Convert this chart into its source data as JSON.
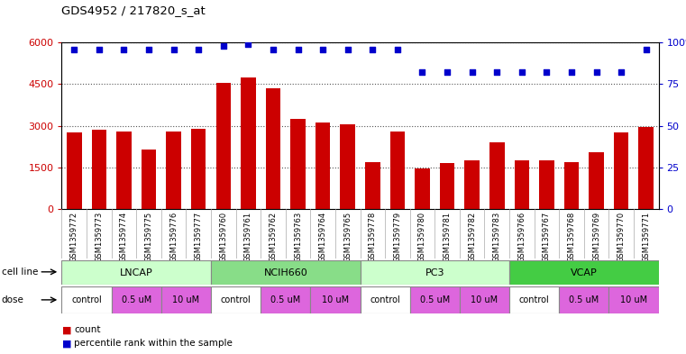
{
  "title": "GDS4952 / 217820_s_at",
  "samples": [
    "GSM1359772",
    "GSM1359773",
    "GSM1359774",
    "GSM1359775",
    "GSM1359776",
    "GSM1359777",
    "GSM1359760",
    "GSM1359761",
    "GSM1359762",
    "GSM1359763",
    "GSM1359764",
    "GSM1359765",
    "GSM1359778",
    "GSM1359779",
    "GSM1359780",
    "GSM1359781",
    "GSM1359782",
    "GSM1359783",
    "GSM1359766",
    "GSM1359767",
    "GSM1359768",
    "GSM1359769",
    "GSM1359770",
    "GSM1359771"
  ],
  "counts": [
    2750,
    2850,
    2800,
    2150,
    2800,
    2900,
    4550,
    4750,
    4350,
    3250,
    3100,
    3050,
    1700,
    2800,
    1450,
    1650,
    1750,
    2400,
    1750,
    1750,
    1700,
    2050,
    2750,
    2950
  ],
  "percentile_y_vals": [
    96,
    96,
    96,
    96,
    96,
    96,
    98,
    99,
    96,
    96,
    96,
    96,
    96,
    96,
    82,
    82,
    82,
    82,
    82,
    82,
    82,
    82,
    82,
    96
  ],
  "bar_color": "#cc0000",
  "dot_color": "#0000cc",
  "cell_lines": [
    {
      "label": "LNCAP",
      "start": 0,
      "end": 6,
      "color": "#ccffcc"
    },
    {
      "label": "NCIH660",
      "start": 6,
      "end": 12,
      "color": "#88dd88"
    },
    {
      "label": "PC3",
      "start": 12,
      "end": 18,
      "color": "#ccffcc"
    },
    {
      "label": "VCAP",
      "start": 18,
      "end": 24,
      "color": "#44cc44"
    }
  ],
  "doses": [
    {
      "label": "control",
      "start": 0,
      "end": 2,
      "color": "#ffffff"
    },
    {
      "label": "0.5 uM",
      "start": 2,
      "end": 4,
      "color": "#dd66dd"
    },
    {
      "label": "10 uM",
      "start": 4,
      "end": 6,
      "color": "#dd66dd"
    },
    {
      "label": "control",
      "start": 6,
      "end": 8,
      "color": "#ffffff"
    },
    {
      "label": "0.5 uM",
      "start": 8,
      "end": 10,
      "color": "#dd66dd"
    },
    {
      "label": "10 uM",
      "start": 10,
      "end": 12,
      "color": "#dd66dd"
    },
    {
      "label": "control",
      "start": 12,
      "end": 14,
      "color": "#ffffff"
    },
    {
      "label": "0.5 uM",
      "start": 14,
      "end": 16,
      "color": "#dd66dd"
    },
    {
      "label": "10 uM",
      "start": 16,
      "end": 18,
      "color": "#dd66dd"
    },
    {
      "label": "control",
      "start": 18,
      "end": 20,
      "color": "#ffffff"
    },
    {
      "label": "0.5 uM",
      "start": 20,
      "end": 22,
      "color": "#dd66dd"
    },
    {
      "label": "10 uM",
      "start": 22,
      "end": 24,
      "color": "#dd66dd"
    }
  ],
  "ylim_left": [
    0,
    6000
  ],
  "yticks_left": [
    0,
    1500,
    3000,
    4500,
    6000
  ],
  "ylim_right": [
    0,
    100
  ],
  "yticks_right": [
    0,
    25,
    50,
    75,
    100
  ],
  "ylabel_left_color": "#cc0000",
  "ylabel_right_color": "#0000cc",
  "background_color": "#ffffff",
  "plot_bg_color": "#ffffff",
  "grid_color": "#555555",
  "sample_bg_color": "#cccccc",
  "cell_line_border_color": "#888888",
  "dose_border_color": "#888888"
}
